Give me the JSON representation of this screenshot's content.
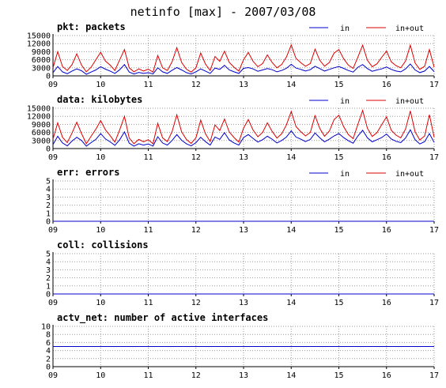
{
  "page": {
    "title": "netinfo [max] - 2007/03/08"
  },
  "chart_data": [
    {
      "type": "line",
      "title": "pkt: packets",
      "x_ticks": [
        "09",
        "10",
        "11",
        "12",
        "13",
        "14",
        "15",
        "16",
        "17"
      ],
      "y_ticks": [
        "0",
        "3000",
        "6000",
        "9000",
        "12000",
        "15000"
      ],
      "ylim": [
        0,
        15000
      ],
      "grid": true,
      "legend_position": "top-right",
      "series": [
        {
          "name": "in",
          "color": "#0000cc"
        },
        {
          "name": "in+out",
          "color": "#dd0000"
        }
      ],
      "x": [
        9.0,
        9.1,
        9.2,
        9.3,
        9.4,
        9.5,
        9.6,
        9.7,
        9.8,
        9.9,
        10.0,
        10.1,
        10.2,
        10.3,
        10.4,
        10.5,
        10.6,
        10.7,
        10.8,
        10.9,
        11.0,
        11.1,
        11.2,
        11.3,
        11.4,
        11.5,
        11.6,
        11.7,
        11.8,
        11.9,
        12.0,
        12.1,
        12.2,
        12.3,
        12.4,
        12.5,
        12.6,
        12.7,
        12.8,
        12.9,
        13.0,
        13.1,
        13.2,
        13.3,
        13.4,
        13.5,
        13.6,
        13.7,
        13.8,
        13.9,
        14.0,
        14.1,
        14.2,
        14.3,
        14.4,
        14.5,
        14.6,
        14.7,
        14.8,
        14.9,
        15.0,
        15.1,
        15.2,
        15.3,
        15.4,
        15.5,
        15.6,
        15.7,
        15.8,
        15.9,
        16.0,
        16.1,
        16.2,
        16.3,
        16.4,
        16.5,
        16.6,
        16.7,
        16.8,
        16.9,
        17.0
      ],
      "in_values": [
        1200,
        3500,
        1500,
        800,
        1800,
        2600,
        1900,
        600,
        1400,
        2200,
        3400,
        2500,
        1800,
        900,
        2300,
        4200,
        1400,
        700,
        1300,
        900,
        1200,
        700,
        3000,
        1500,
        900,
        2100,
        3100,
        2200,
        1200,
        700,
        1500,
        2600,
        1800,
        900,
        2900,
        2400,
        3900,
        2200,
        1500,
        900,
        2800,
        3100,
        2600,
        1700,
        2200,
        2700,
        2300,
        1500,
        2000,
        2800,
        4300,
        2900,
        2400,
        1800,
        2300,
        3600,
        2700,
        1800,
        2400,
        3000,
        3500,
        2800,
        2000,
        1400,
        3200,
        4200,
        2700,
        1700,
        2200,
        2600,
        3300,
        2400,
        1800,
        1500,
        2600,
        4400,
        2200,
        1200,
        1800,
        3500,
        1600
      ],
      "inout_values": [
        3000,
        9000,
        3500,
        2000,
        4200,
        8200,
        4000,
        1500,
        3200,
        6000,
        8800,
        5500,
        4000,
        2000,
        6000,
        9800,
        3000,
        1500,
        2600,
        1800,
        2500,
        1400,
        7600,
        3000,
        2000,
        5200,
        10500,
        5000,
        2500,
        1400,
        3000,
        8500,
        4400,
        2000,
        7200,
        5400,
        9200,
        5000,
        3200,
        1800,
        6000,
        8700,
        5400,
        3400,
        4600,
        7800,
        5000,
        3000,
        4200,
        7000,
        11500,
        6500,
        4900,
        3600,
        4600,
        9900,
        5800,
        3600,
        5000,
        8500,
        9800,
        6400,
        4000,
        2800,
        7000,
        11400,
        5800,
        3400,
        4500,
        6900,
        9200,
        5200,
        3800,
        3000,
        5500,
        11400,
        4800,
        2400,
        3600,
        9800,
        3200
      ]
    },
    {
      "type": "line",
      "title": "data: kilobytes",
      "x_ticks": [
        "09",
        "10",
        "11",
        "12",
        "13",
        "14",
        "15",
        "16",
        "17"
      ],
      "y_ticks": [
        "0",
        "3000",
        "6000",
        "9000",
        "12000",
        "15000"
      ],
      "ylim": [
        0,
        15000
      ],
      "grid": true,
      "legend_position": "top-right",
      "series": [
        {
          "name": "in",
          "color": "#0000cc"
        },
        {
          "name": "in+out",
          "color": "#dd0000"
        }
      ],
      "x": [
        9.0,
        9.1,
        9.2,
        9.3,
        9.4,
        9.5,
        9.6,
        9.7,
        9.8,
        9.9,
        10.0,
        10.1,
        10.2,
        10.3,
        10.4,
        10.5,
        10.6,
        10.7,
        10.8,
        10.9,
        11.0,
        11.1,
        11.2,
        11.3,
        11.4,
        11.5,
        11.6,
        11.7,
        11.8,
        11.9,
        12.0,
        12.1,
        12.2,
        12.3,
        12.4,
        12.5,
        12.6,
        12.7,
        12.8,
        12.9,
        13.0,
        13.1,
        13.2,
        13.3,
        13.4,
        13.5,
        13.6,
        13.7,
        13.8,
        13.9,
        14.0,
        14.1,
        14.2,
        14.3,
        14.4,
        14.5,
        14.6,
        14.7,
        14.8,
        14.9,
        15.0,
        15.1,
        15.2,
        15.3,
        15.4,
        15.5,
        15.6,
        15.7,
        15.8,
        15.9,
        16.0,
        16.1,
        16.2,
        16.3,
        16.4,
        16.5,
        16.6,
        16.7,
        16.8,
        16.9,
        17.0
      ],
      "in_values": [
        1500,
        4600,
        2100,
        1000,
        2800,
        4200,
        3000,
        900,
        2200,
        3400,
        5600,
        3600,
        2500,
        1200,
        3300,
        6200,
        2000,
        900,
        1800,
        1300,
        1700,
        900,
        4400,
        2100,
        1300,
        3000,
        5200,
        3100,
        1800,
        1000,
        2200,
        4200,
        2600,
        1300,
        4300,
        3400,
        5900,
        3200,
        2100,
        1300,
        4100,
        5200,
        3800,
        2400,
        3300,
        4600,
        3500,
        2100,
        3000,
        4300,
        6600,
        4300,
        3500,
        2600,
        3400,
        5800,
        4000,
        2500,
        3500,
        4700,
        5600,
        4100,
        2900,
        2000,
        4700,
        6800,
        4000,
        2500,
        3300,
        4100,
        5400,
        3600,
        2700,
        2200,
        3900,
        7000,
        3300,
        1700,
        2600,
        5600,
        2300
      ],
      "inout_values": [
        3500,
        9600,
        4200,
        2200,
        5800,
        9800,
        5600,
        1800,
        4600,
        7200,
        10400,
        7000,
        4800,
        2400,
        7000,
        12000,
        3900,
        1800,
        3400,
        2500,
        3300,
        1800,
        9400,
        4000,
        2600,
        6300,
        12600,
        6200,
        3400,
        1900,
        4000,
        10600,
        5500,
        2600,
        8800,
        6700,
        11000,
        6200,
        4100,
        2400,
        7600,
        10800,
        6900,
        4400,
        6000,
        9600,
        6400,
        3900,
        5500,
        8800,
        13800,
        8200,
        6300,
        4700,
        6000,
        12200,
        7500,
        4600,
        6500,
        10800,
        12400,
        8200,
        5200,
        3700,
        9000,
        14200,
        7600,
        4500,
        5900,
        8900,
        11800,
        6800,
        5000,
        4000,
        7200,
        14000,
        6200,
        3200,
        4700,
        12600,
        4200
      ]
    },
    {
      "type": "line",
      "title": "err: errors",
      "x_ticks": [
        "09",
        "10",
        "11",
        "12",
        "13",
        "14",
        "15",
        "16",
        "17"
      ],
      "y_ticks": [
        "0",
        "1",
        "2",
        "3",
        "4",
        "5"
      ],
      "ylim": [
        0,
        5
      ],
      "grid": true,
      "legend_position": "top-right",
      "series": [
        {
          "name": "in",
          "color": "#0000cc"
        },
        {
          "name": "in+out",
          "color": "#dd0000"
        }
      ],
      "x": [
        9,
        17
      ],
      "in_values": [
        0,
        0
      ],
      "inout_values": [
        0,
        0
      ]
    },
    {
      "type": "line",
      "title": "coll: collisions",
      "x_ticks": [
        "09",
        "10",
        "11",
        "12",
        "13",
        "14",
        "15",
        "16",
        "17"
      ],
      "y_ticks": [
        "0",
        "1",
        "2",
        "3",
        "4",
        "5"
      ],
      "ylim": [
        0,
        5
      ],
      "grid": true,
      "series": [
        {
          "color": "#0000cc"
        }
      ],
      "x": [
        9,
        17
      ],
      "values": [
        0,
        0
      ]
    },
    {
      "type": "line",
      "title": "actv_net: number of active interfaces",
      "x_ticks": [
        "09",
        "10",
        "11",
        "12",
        "13",
        "14",
        "15",
        "16",
        "17"
      ],
      "y_ticks": [
        "0",
        "2",
        "4",
        "6",
        "8",
        "10"
      ],
      "ylim": [
        0,
        10
      ],
      "grid": true,
      "series": [
        {
          "color": "#0000cc"
        }
      ],
      "x": [
        9,
        17
      ],
      "values": [
        5,
        5
      ]
    }
  ]
}
